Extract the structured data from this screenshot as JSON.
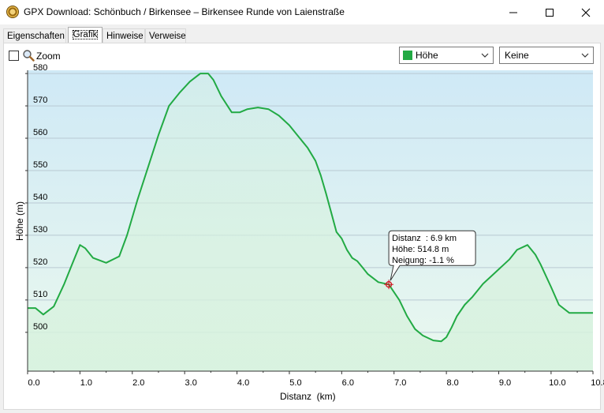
{
  "window": {
    "title": "GPX Download: Schönbuch / Birkensee – Birkensee Runde von Laienstraße",
    "minimize_glyph": "—",
    "maximize_glyph": "☐",
    "close_glyph": "✕"
  },
  "tabs": [
    {
      "label": "Eigenschaften",
      "active": false
    },
    {
      "label": "Grafik",
      "active": true
    },
    {
      "label": "Hinweise",
      "active": false
    },
    {
      "label": "Verweise",
      "active": false
    }
  ],
  "toolbar": {
    "zoom_label": "Zoom",
    "zoom_checked": false,
    "series_select": {
      "value": "Höhe",
      "color": "#22aa44"
    },
    "second_select": {
      "value": "Keine"
    }
  },
  "chart_data": {
    "type": "line",
    "xlabel": "Distanz  (km)",
    "ylabel": "Höhe (m)",
    "xlim": [
      0,
      10.8
    ],
    "ylim": [
      488,
      581
    ],
    "xticks": [
      0,
      1,
      2,
      3,
      4,
      5,
      6,
      7,
      8,
      9,
      10,
      10.8
    ],
    "xtick_labels": [
      "0.0",
      "1.0",
      "2.0",
      "3.0",
      "4.0",
      "5.0",
      "6.0",
      "7.0",
      "8.0",
      "9.0",
      "10.0",
      "10.8"
    ],
    "yticks": [
      500,
      510,
      520,
      530,
      540,
      550,
      560,
      570,
      580
    ],
    "ytick_labels": [
      "500",
      "510",
      "520",
      "530",
      "540",
      "550",
      "560",
      "570",
      "580"
    ],
    "grid": true,
    "color": "#22aa44",
    "series": [
      {
        "x": [
          0,
          0.15,
          0.3,
          0.5,
          0.7,
          0.85,
          1.0,
          1.1,
          1.25,
          1.5,
          1.75,
          1.9,
          2.1,
          2.3,
          2.5,
          2.7,
          2.9,
          3.1,
          3.3,
          3.45,
          3.55,
          3.7,
          3.9,
          4.05,
          4.2,
          4.4,
          4.6,
          4.8,
          5.0,
          5.2,
          5.35,
          5.5,
          5.6,
          5.7,
          5.8,
          5.9,
          6.0,
          6.1,
          6.2,
          6.3,
          6.4,
          6.5,
          6.7,
          6.9,
          7.1,
          7.25,
          7.4,
          7.55,
          7.75,
          7.9,
          8.0,
          8.1,
          8.2,
          8.35,
          8.5,
          8.7,
          8.9,
          9.0,
          9.2,
          9.35,
          9.55,
          9.7,
          9.8,
          10.0,
          10.15,
          10.35,
          10.55,
          10.8
        ],
        "y": [
          507.5,
          507.5,
          505.5,
          508,
          515,
          521,
          527,
          526,
          523,
          521.5,
          523.5,
          530,
          541,
          551,
          561,
          570,
          574,
          577.5,
          580,
          580,
          578,
          573,
          568,
          568,
          569,
          569.5,
          569,
          567,
          564,
          560,
          557,
          553,
          548.5,
          543,
          537,
          531,
          529,
          525.5,
          523,
          522,
          520,
          518,
          515.5,
          514.8,
          510,
          505,
          501,
          499,
          497.5,
          497.2,
          498.5,
          501.5,
          505,
          508.5,
          511,
          515,
          518,
          519.5,
          522.5,
          525.5,
          527,
          524,
          521,
          514,
          508.5,
          506,
          506,
          506
        ]
      }
    ],
    "tooltip": {
      "x": 6.9,
      "y": 514.8,
      "lines": [
        "Distanz  : 6.9 km",
        "Höhe: 514.8 m",
        "Neigung: -1.1 %"
      ]
    }
  }
}
